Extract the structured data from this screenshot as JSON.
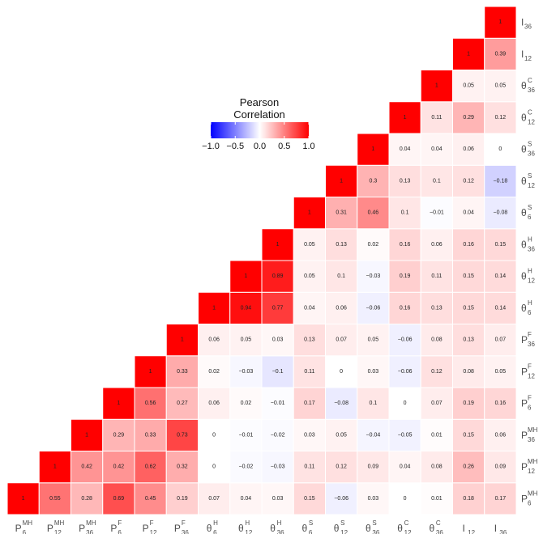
{
  "chart_data": {
    "type": "heatmap",
    "variables": [
      {
        "base": "P",
        "sup": "MH",
        "sub": "6"
      },
      {
        "base": "P",
        "sup": "MH",
        "sub": "12"
      },
      {
        "base": "P",
        "sup": "MH",
        "sub": "36"
      },
      {
        "base": "P",
        "sup": "F",
        "sub": "6"
      },
      {
        "base": "P",
        "sup": "F",
        "sub": "12"
      },
      {
        "base": "P",
        "sup": "F",
        "sub": "36"
      },
      {
        "base": "θ",
        "sup": "H",
        "sub": "6"
      },
      {
        "base": "θ",
        "sup": "H",
        "sub": "12"
      },
      {
        "base": "θ",
        "sup": "H",
        "sub": "36"
      },
      {
        "base": "θ",
        "sup": "S",
        "sub": "6"
      },
      {
        "base": "θ",
        "sup": "S",
        "sub": "12"
      },
      {
        "base": "θ",
        "sup": "S",
        "sub": "36"
      },
      {
        "base": "θ",
        "sup": "C",
        "sub": "12"
      },
      {
        "base": "θ",
        "sup": "C",
        "sub": "36"
      },
      {
        "base": "I",
        "sup": "",
        "sub": "12"
      },
      {
        "base": "I",
        "sup": "",
        "sub": "36"
      }
    ],
    "matrix": [
      [
        1,
        0.55,
        0.28,
        0.69,
        0.45,
        0.19,
        0.07,
        0.04,
        0.03,
        0.15,
        -0.06,
        0.03,
        0,
        0.01,
        0.18,
        0.17
      ],
      [
        null,
        1,
        0.42,
        0.42,
        0.62,
        0.32,
        0,
        -0.02,
        -0.03,
        0.11,
        0.12,
        0.09,
        0.04,
        0.08,
        0.26,
        0.09
      ],
      [
        null,
        null,
        1,
        0.29,
        0.33,
        0.73,
        0,
        -0.01,
        -0.02,
        0.03,
        0.05,
        -0.04,
        -0.05,
        0.01,
        0.15,
        0.06
      ],
      [
        null,
        null,
        null,
        1,
        0.56,
        0.27,
        0.06,
        0.02,
        -0.01,
        0.17,
        -0.08,
        0.1,
        0,
        0.07,
        0.19,
        0.16
      ],
      [
        null,
        null,
        null,
        null,
        1,
        0.33,
        0.02,
        -0.03,
        -0.1,
        0.11,
        0,
        0.03,
        -0.06,
        0.12,
        0.08,
        0.05
      ],
      [
        null,
        null,
        null,
        null,
        null,
        1,
        0.06,
        0.05,
        0.03,
        0.13,
        0.07,
        0.05,
        -0.06,
        0.08,
        0.13,
        0.07
      ],
      [
        null,
        null,
        null,
        null,
        null,
        null,
        1,
        0.94,
        0.77,
        0.04,
        0.06,
        -0.06,
        0.16,
        0.13,
        0.15,
        0.14
      ],
      [
        null,
        null,
        null,
        null,
        null,
        null,
        null,
        1,
        0.89,
        0.05,
        0.1,
        -0.03,
        0.19,
        0.11,
        0.15,
        0.14
      ],
      [
        null,
        null,
        null,
        null,
        null,
        null,
        null,
        null,
        1,
        0.05,
        0.13,
        0.02,
        0.16,
        0.06,
        0.16,
        0.15
      ],
      [
        null,
        null,
        null,
        null,
        null,
        null,
        null,
        null,
        null,
        1,
        0.31,
        0.46,
        0.1,
        -0.01,
        0.04,
        -0.08
      ],
      [
        null,
        null,
        null,
        null,
        null,
        null,
        null,
        null,
        null,
        null,
        1,
        0.3,
        0.13,
        0.1,
        0.12,
        -0.18
      ],
      [
        null,
        null,
        null,
        null,
        null,
        null,
        null,
        null,
        null,
        null,
        null,
        1,
        0.04,
        0.04,
        0.06,
        0
      ],
      [
        null,
        null,
        null,
        null,
        null,
        null,
        null,
        null,
        null,
        null,
        null,
        null,
        1,
        0.11,
        0.29,
        0.12
      ],
      [
        null,
        null,
        null,
        null,
        null,
        null,
        null,
        null,
        null,
        null,
        null,
        null,
        null,
        1,
        0.05,
        0.05
      ],
      [
        null,
        null,
        null,
        null,
        null,
        null,
        null,
        null,
        null,
        null,
        null,
        null,
        null,
        null,
        1,
        0.39
      ],
      [
        null,
        null,
        null,
        null,
        null,
        null,
        null,
        null,
        null,
        null,
        null,
        null,
        null,
        null,
        null,
        1
      ]
    ],
    "triangle": "upper",
    "x_axis_position": "bottom",
    "y_axis_position": "right",
    "legend": {
      "title_lines": [
        "Pearson",
        "Correlation"
      ],
      "ticks": [
        "−1.0",
        "−0.5",
        "0.0",
        "0.5",
        "1.0"
      ],
      "range": [
        -1,
        1
      ],
      "placement": "top-center"
    },
    "colors": {
      "low": "#0000ff",
      "mid": "#ffffff",
      "high": "#ff0000",
      "grid": "#ffffff"
    }
  }
}
